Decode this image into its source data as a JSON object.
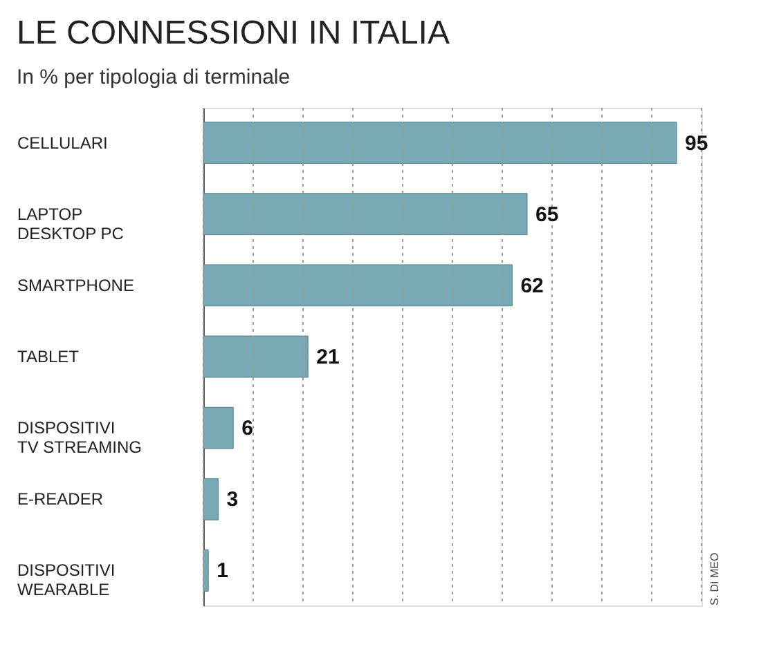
{
  "chart_data": {
    "type": "bar",
    "orientation": "horizontal",
    "title": "LE CONNESSIONI IN ITALIA",
    "subtitle": "In % per tipologia di terminale",
    "categories": [
      "CELLULARI",
      "LAPTOP\nDESKTOP PC",
      "SMARTPHONE",
      "TABLET",
      "DISPOSITIVI\nTV STREAMING",
      "E-READER",
      "DISPOSITIVI\nWEARABLE"
    ],
    "values": [
      95,
      65,
      62,
      21,
      6,
      3,
      1
    ],
    "color": "#78a8b4",
    "data_labels": true,
    "xlim": [
      0,
      100
    ],
    "xticks": [
      {
        "value": 0,
        "label": null
      },
      {
        "value": 10,
        "label": null
      },
      {
        "value": 20,
        "label": null
      },
      {
        "value": 30,
        "label": null
      },
      {
        "value": 40,
        "label": null
      },
      {
        "value": 50,
        "label": null
      },
      {
        "value": 60,
        "label": null
      },
      {
        "value": 70,
        "label": null
      },
      {
        "value": 80,
        "label": null
      },
      {
        "value": 90,
        "label": null
      },
      {
        "value": 100,
        "label": null
      }
    ],
    "grid": "x",
    "tick_labels": "y",
    "annotations": [
      "S. DI MEO"
    ]
  }
}
